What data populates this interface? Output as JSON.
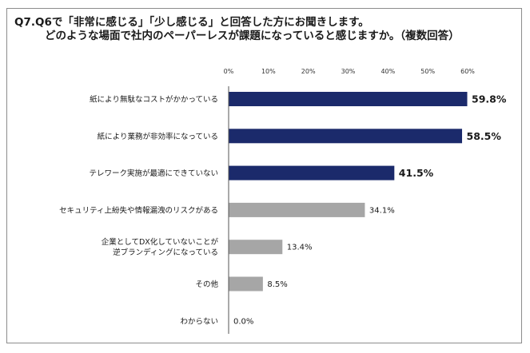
{
  "title": {
    "line1": "Q7.Q6で「非常に感じる」「少し感じる」と回答した方にお聞きします。",
    "line2": "どのような場面で社内のペーパーレスが課題になっていると感じますか。（複数回答）"
  },
  "chart_data": {
    "type": "bar",
    "orientation": "horizontal",
    "categories": [
      [
        "紙により無駄なコストがかかっている"
      ],
      [
        "紙により業務が非効率になっている"
      ],
      [
        "テレワーク実施が最適にできていない"
      ],
      [
        "セキュリティ上紛失や情報漏洩のリスクがある"
      ],
      [
        "企業としてDX化していないことが",
        "逆ブランディングになっている"
      ],
      [
        "その他"
      ],
      [
        "わからない"
      ]
    ],
    "values": [
      59.8,
      58.5,
      41.5,
      34.1,
      13.4,
      8.5,
      0.0
    ],
    "value_labels": [
      "59.8%",
      "58.5%",
      "41.5%",
      "34.1%",
      "13.4%",
      "8.5%",
      "0.0%"
    ],
    "highlight": [
      true,
      true,
      true,
      false,
      false,
      false,
      false
    ],
    "xlim": [
      0,
      60
    ],
    "xticks": [
      0,
      10,
      20,
      30,
      40,
      50,
      60
    ],
    "xtick_labels": [
      "0%",
      "10%",
      "20%",
      "30%",
      "40%",
      "50%",
      "60%"
    ],
    "tick_position": "top",
    "colors": {
      "highlight": "#1b2a6b",
      "normal": "#a6a6a6",
      "axis": "#555555"
    },
    "grid": false,
    "legend": "none"
  }
}
